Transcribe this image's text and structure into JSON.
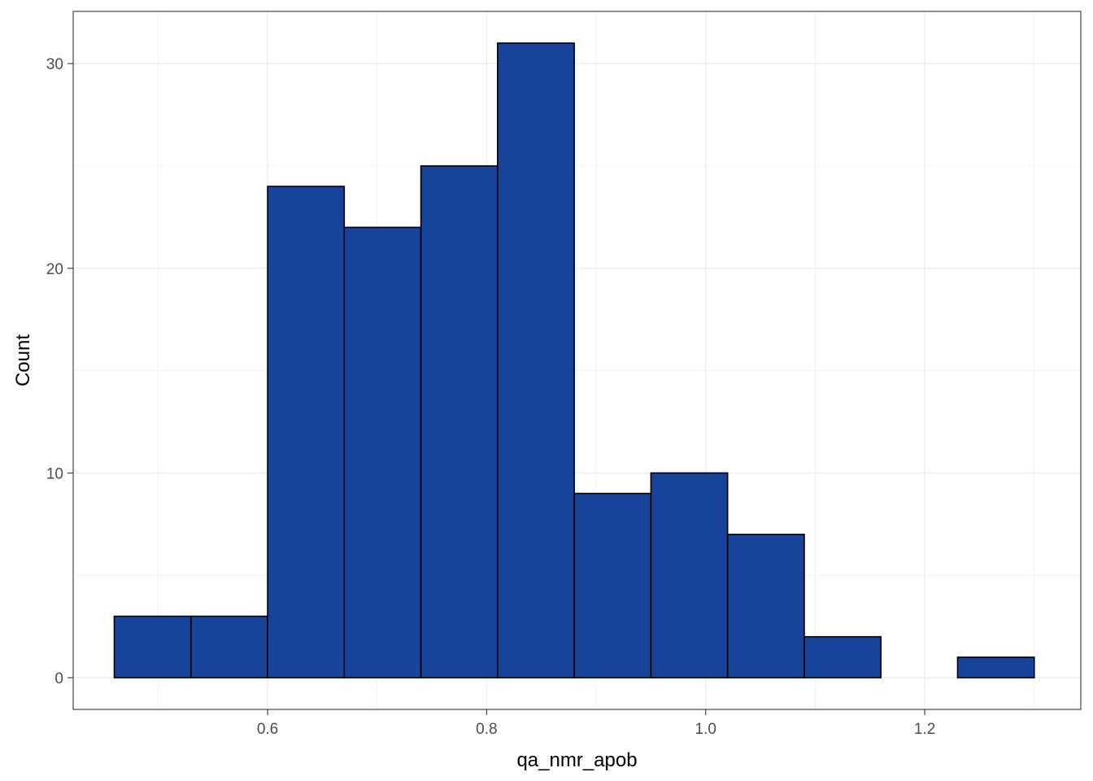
{
  "chart_data": {
    "type": "bar",
    "subtype": "histogram",
    "xlabel": "qa_nmr_apob",
    "ylabel": "Count",
    "xlim": [
      0.4225,
      1.3425
    ],
    "ylim": [
      -1.55,
      32.55
    ],
    "x_ticks": [
      {
        "value": 0.6,
        "label": "0.6"
      },
      {
        "value": 0.8,
        "label": "0.8"
      },
      {
        "value": 1.0,
        "label": "1.0"
      },
      {
        "value": 1.2,
        "label": "1.2"
      }
    ],
    "y_ticks": [
      {
        "value": 0,
        "label": "0"
      },
      {
        "value": 10,
        "label": "10"
      },
      {
        "value": 20,
        "label": "20"
      },
      {
        "value": 30,
        "label": "30"
      }
    ],
    "bins": [
      {
        "start": 0.46,
        "end": 0.53,
        "count": 3
      },
      {
        "start": 0.53,
        "end": 0.6,
        "count": 3
      },
      {
        "start": 0.6,
        "end": 0.67,
        "count": 24
      },
      {
        "start": 0.67,
        "end": 0.74,
        "count": 22
      },
      {
        "start": 0.74,
        "end": 0.81,
        "count": 25
      },
      {
        "start": 0.81,
        "end": 0.88,
        "count": 31
      },
      {
        "start": 0.88,
        "end": 0.95,
        "count": 9
      },
      {
        "start": 0.95,
        "end": 1.02,
        "count": 10
      },
      {
        "start": 1.02,
        "end": 1.09,
        "count": 7
      },
      {
        "start": 1.09,
        "end": 1.16,
        "count": 2
      },
      {
        "start": 1.16,
        "end": 1.23,
        "count": 0
      },
      {
        "start": 1.23,
        "end": 1.3,
        "count": 1
      }
    ],
    "bar_fill": "#17439B",
    "bar_stroke": "#000000",
    "grid": true,
    "grid_color": "#ebebeb",
    "theme": "bw"
  }
}
